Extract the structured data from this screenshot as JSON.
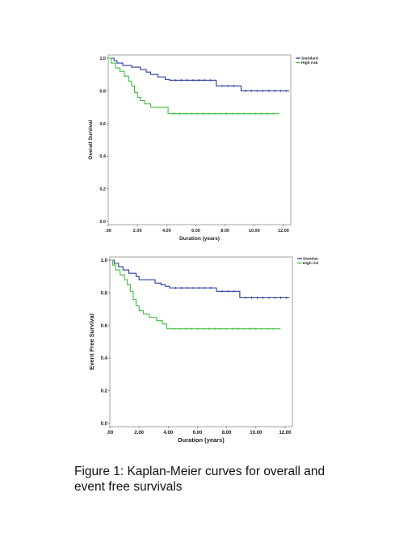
{
  "chart_data": [
    {
      "type": "line",
      "subtype": "kaplan-meier",
      "title": "",
      "xlabel": "Duration (years)",
      "ylabel": "Overall Survival",
      "xlim": [
        0,
        12.5
      ],
      "ylim": [
        0,
        1.0
      ],
      "x_ticks": [
        ".00",
        "2.00",
        "4.00",
        "6.00",
        "8.00",
        "10.00",
        "12.00"
      ],
      "y_ticks": [
        "0.0",
        "0.2",
        "0.4",
        "0.6",
        "0.8",
        "1.0"
      ],
      "grid": false,
      "legend": "top-right",
      "series": [
        {
          "name": "Standard risk",
          "color": "#2a3b9e",
          "steps": [
            [
              0,
              1.0
            ],
            [
              0.4,
              0.985
            ],
            [
              0.6,
              0.97
            ],
            [
              1.0,
              0.955
            ],
            [
              1.6,
              0.945
            ],
            [
              2.2,
              0.93
            ],
            [
              2.6,
              0.915
            ],
            [
              2.9,
              0.9
            ],
            [
              3.4,
              0.885
            ],
            [
              3.9,
              0.87
            ],
            [
              4.2,
              0.865
            ],
            [
              7.4,
              0.83
            ],
            [
              9.1,
              0.8
            ],
            [
              12.4,
              0.8
            ]
          ],
          "censored": [
            4.6,
            5.0,
            5.4,
            5.8,
            6.2,
            6.6,
            7.0,
            7.8,
            8.2,
            8.6,
            9.4,
            9.8,
            10.2,
            10.6,
            11.0,
            11.4,
            11.8,
            12.2
          ]
        },
        {
          "name": "High risk",
          "color": "#3fbf3f",
          "steps": [
            [
              0,
              1.0
            ],
            [
              0.2,
              0.97
            ],
            [
              0.5,
              0.94
            ],
            [
              0.8,
              0.92
            ],
            [
              1.1,
              0.89
            ],
            [
              1.4,
              0.86
            ],
            [
              1.6,
              0.83
            ],
            [
              1.8,
              0.79
            ],
            [
              2.0,
              0.76
            ],
            [
              2.2,
              0.74
            ],
            [
              2.5,
              0.72
            ],
            [
              2.9,
              0.7
            ],
            [
              4.1,
              0.66
            ],
            [
              11.7,
              0.66
            ]
          ],
          "censored": [
            4.5,
            4.9,
            5.3,
            5.7,
            6.1,
            6.5,
            6.9,
            7.3,
            7.7,
            8.1,
            8.5,
            8.9,
            9.3,
            9.7,
            10.1,
            10.5,
            10.9,
            11.3
          ]
        }
      ]
    },
    {
      "type": "line",
      "subtype": "kaplan-meier",
      "title": "",
      "xlabel": "Duration (years)",
      "ylabel": "Event Free Survival",
      "xlim": [
        0,
        12.5
      ],
      "ylim": [
        0,
        1.0
      ],
      "x_ticks": [
        ".00",
        "2.00",
        "4.00",
        "6.00",
        "8.00",
        "10.00",
        "12.00"
      ],
      "y_ticks": [
        "0.0",
        "0.2",
        "0.4",
        "0.6",
        "0.8",
        "1.0"
      ],
      "grid": false,
      "legend": "top-right",
      "series": [
        {
          "name": "Standard risk",
          "color": "#2a3b9e",
          "steps": [
            [
              0,
              1.0
            ],
            [
              0.3,
              0.98
            ],
            [
              0.6,
              0.96
            ],
            [
              0.9,
              0.94
            ],
            [
              1.3,
              0.92
            ],
            [
              1.8,
              0.9
            ],
            [
              2.0,
              0.88
            ],
            [
              3.1,
              0.86
            ],
            [
              3.5,
              0.85
            ],
            [
              3.8,
              0.84
            ],
            [
              4.1,
              0.83
            ],
            [
              7.3,
              0.81
            ],
            [
              8.9,
              0.77
            ],
            [
              12.3,
              0.77
            ]
          ],
          "censored": [
            4.5,
            4.9,
            5.3,
            5.7,
            6.1,
            6.5,
            6.9,
            7.7,
            8.1,
            8.5,
            9.3,
            9.7,
            10.1,
            10.5,
            10.9,
            11.3,
            11.7,
            12.1
          ]
        },
        {
          "name": "High risk",
          "color": "#3fbf3f",
          "steps": [
            [
              0,
              1.0
            ],
            [
              0.2,
              0.97
            ],
            [
              0.4,
              0.94
            ],
            [
              0.7,
              0.91
            ],
            [
              1.0,
              0.88
            ],
            [
              1.2,
              0.85
            ],
            [
              1.4,
              0.81
            ],
            [
              1.6,
              0.76
            ],
            [
              1.8,
              0.72
            ],
            [
              2.0,
              0.69
            ],
            [
              2.3,
              0.67
            ],
            [
              2.7,
              0.65
            ],
            [
              3.2,
              0.63
            ],
            [
              3.6,
              0.61
            ],
            [
              3.9,
              0.58
            ],
            [
              11.7,
              0.58
            ]
          ],
          "censored": [
            4.4,
            4.8,
            5.2,
            5.6,
            6.0,
            6.4,
            6.8,
            7.2,
            7.6,
            8.0,
            8.4,
            8.8,
            9.2,
            9.6,
            10.0,
            10.4,
            10.8,
            11.2
          ]
        }
      ]
    }
  ],
  "caption": {
    "line1": "Figure 1: Kaplan-Meier curves for overall and",
    "line2": "event free survivals"
  }
}
